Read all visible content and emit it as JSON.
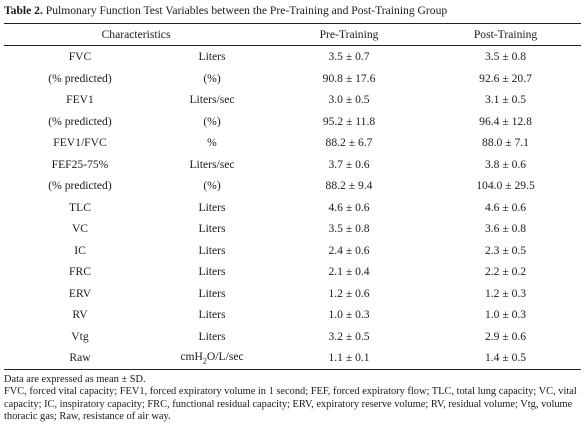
{
  "caption": {
    "label": "Table 2.",
    "text": " Pulmonary Function Test Variables between the Pre-Training and Post-Training Group"
  },
  "table": {
    "headers": [
      "Characteristics",
      "Pre-Training",
      "Post-Training"
    ],
    "rows": [
      [
        "FVC",
        "Liters",
        "3.5 ± 0.7",
        "3.5 ± 0.8"
      ],
      [
        "(% predicted)",
        "(%)",
        "90.8 ± 17.6",
        "92.6 ± 20.7"
      ],
      [
        "FEV1",
        "Liters/sec",
        "3.0 ± 0.5",
        "3.1 ± 0.5"
      ],
      [
        "(% predicted)",
        "(%)",
        "95.2 ± 11.8",
        "96.4 ± 12.8"
      ],
      [
        "FEV1/FVC",
        "%",
        "88.2 ± 6.7",
        "88.0 ± 7.1"
      ],
      [
        "FEF25-75%",
        "Liters/sec",
        "3.7 ± 0.6",
        "3.8 ± 0.6"
      ],
      [
        "(% predicted)",
        "(%)",
        "88.2 ± 9.4",
        "104.0 ± 29.5"
      ],
      [
        "TLC",
        "Liters",
        "4.6 ± 0.6",
        "4.6 ± 0.6"
      ],
      [
        "VC",
        "Liters",
        "3.5 ± 0.8",
        "3.6 ± 0.8"
      ],
      [
        "IC",
        "Liters",
        "2.4 ± 0.6",
        "2.3 ± 0.5"
      ],
      [
        "FRC",
        "Liters",
        "2.1 ± 0.4",
        "2.2 ± 0.2"
      ],
      [
        "ERV",
        "Liters",
        "1.2 ± 0.6",
        "1.2 ± 0.3"
      ],
      [
        "RV",
        "Liters",
        "1.0 ± 0.3",
        "1.0 ± 0.3"
      ],
      [
        "Vtg",
        "Liters",
        "3.2 ± 0.5",
        "2.9 ± 0.6"
      ],
      [
        "Raw",
        "cmH2O/L/sec",
        "1.1 ± 0.1",
        "1.4 ± 0.5"
      ]
    ]
  },
  "raw_unit": {
    "before": "cmH",
    "sub": "2",
    "after": "O/L/sec"
  },
  "footnotes": [
    "Data are expressed as mean ± SD.",
    "FVC, forced vital capacity; FEV1, forced expiratory volume in 1 second; FEF, forced expiratory flow; TLC, total lung capacity; VC, vital capacity; IC, inspiratory capacity; FRC, functional residual capacity; ERV, expiratory reserve volume; RV, residual volume; Vtg, volume thoracic gas; Raw, resistance of air way."
  ]
}
